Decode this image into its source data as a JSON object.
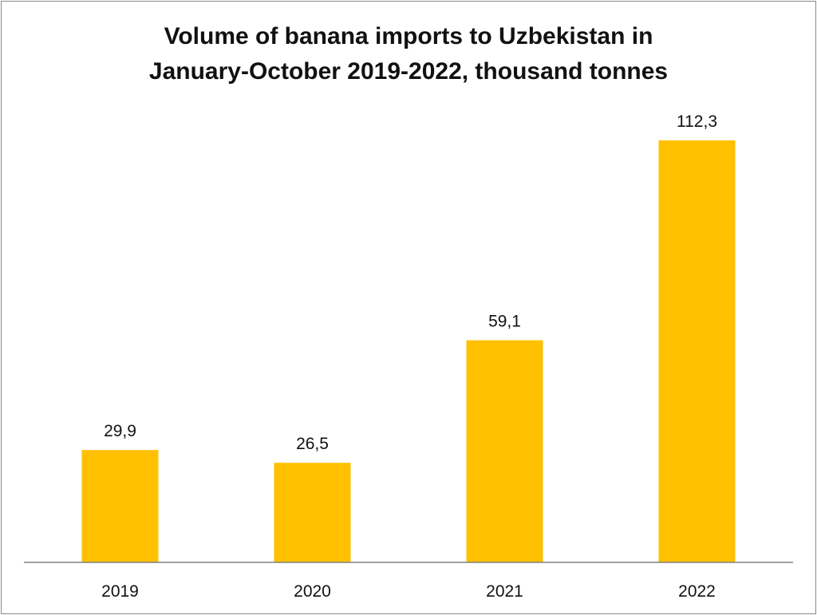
{
  "chart_data": {
    "type": "bar",
    "title_lines": [
      "Volume of banana imports to Uzbekistan in",
      "January-October 2019-2022, thousand tonnes"
    ],
    "categories": [
      "2019",
      "2020",
      "2021",
      "2022"
    ],
    "values": [
      29.9,
      26.5,
      59.1,
      112.3
    ],
    "value_labels": [
      "29,9",
      "26,5",
      "59,1",
      "112,3"
    ],
    "ylim": [
      0,
      112.3
    ],
    "grid": false,
    "legend": false,
    "bar_color": "#FFC000",
    "axis_color": "#808080"
  }
}
